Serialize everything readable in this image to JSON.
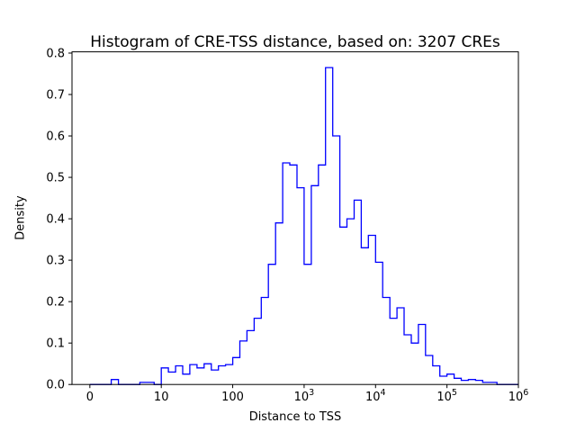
{
  "figure": {
    "background": "#ffffff"
  },
  "chart_data": {
    "type": "histogram",
    "histtype": "step",
    "title": "Histogram of CRE-TSS distance, based on: 3207 CREs",
    "xlabel": "Distance to TSS",
    "ylabel": "Density",
    "n_cres": 3207,
    "x_scale": "log10 (zero tick shown at 10^0 position)",
    "xlim_log10": [
      -0.25,
      6.0
    ],
    "ylim": [
      0.0,
      0.803
    ],
    "line_color": "#0000ff",
    "frame_color": "#000000",
    "grid": false,
    "legend": null,
    "bin_start_log10": 0.0,
    "bin_width_log10": 0.1,
    "densities": [
      0,
      0,
      0,
      0.012,
      0,
      0,
      0,
      0.005,
      0.005,
      0,
      0.04,
      0.03,
      0.045,
      0.025,
      0.048,
      0.04,
      0.05,
      0.035,
      0.045,
      0.048,
      0.065,
      0.105,
      0.13,
      0.16,
      0.21,
      0.29,
      0.39,
      0.535,
      0.53,
      0.475,
      0.29,
      0.48,
      0.53,
      0.765,
      0.6,
      0.38,
      0.4,
      0.445,
      0.33,
      0.36,
      0.295,
      0.21,
      0.16,
      0.185,
      0.12,
      0.1,
      0.145,
      0.07,
      0.045,
      0.02,
      0.025,
      0.015,
      0.01,
      0.012,
      0.01,
      0.005,
      0.005,
      0,
      0,
      0
    ],
    "xticks": [
      {
        "label": "0",
        "log10": 0
      },
      {
        "label": "10",
        "log10": 1
      },
      {
        "label": "100",
        "log10": 2
      },
      {
        "label": "10",
        "exp": "3",
        "log10": 3
      },
      {
        "label": "10",
        "exp": "4",
        "log10": 4
      },
      {
        "label": "10",
        "exp": "5",
        "log10": 5
      },
      {
        "label": "10",
        "exp": "6",
        "log10": 6
      }
    ],
    "yticks": [
      {
        "label": "0.0",
        "value": 0.0
      },
      {
        "label": "0.1",
        "value": 0.1
      },
      {
        "label": "0.2",
        "value": 0.2
      },
      {
        "label": "0.3",
        "value": 0.3
      },
      {
        "label": "0.4",
        "value": 0.4
      },
      {
        "label": "0.5",
        "value": 0.5
      },
      {
        "label": "0.6",
        "value": 0.6
      },
      {
        "label": "0.7",
        "value": 0.7
      },
      {
        "label": "0.8",
        "value": 0.8
      }
    ]
  }
}
